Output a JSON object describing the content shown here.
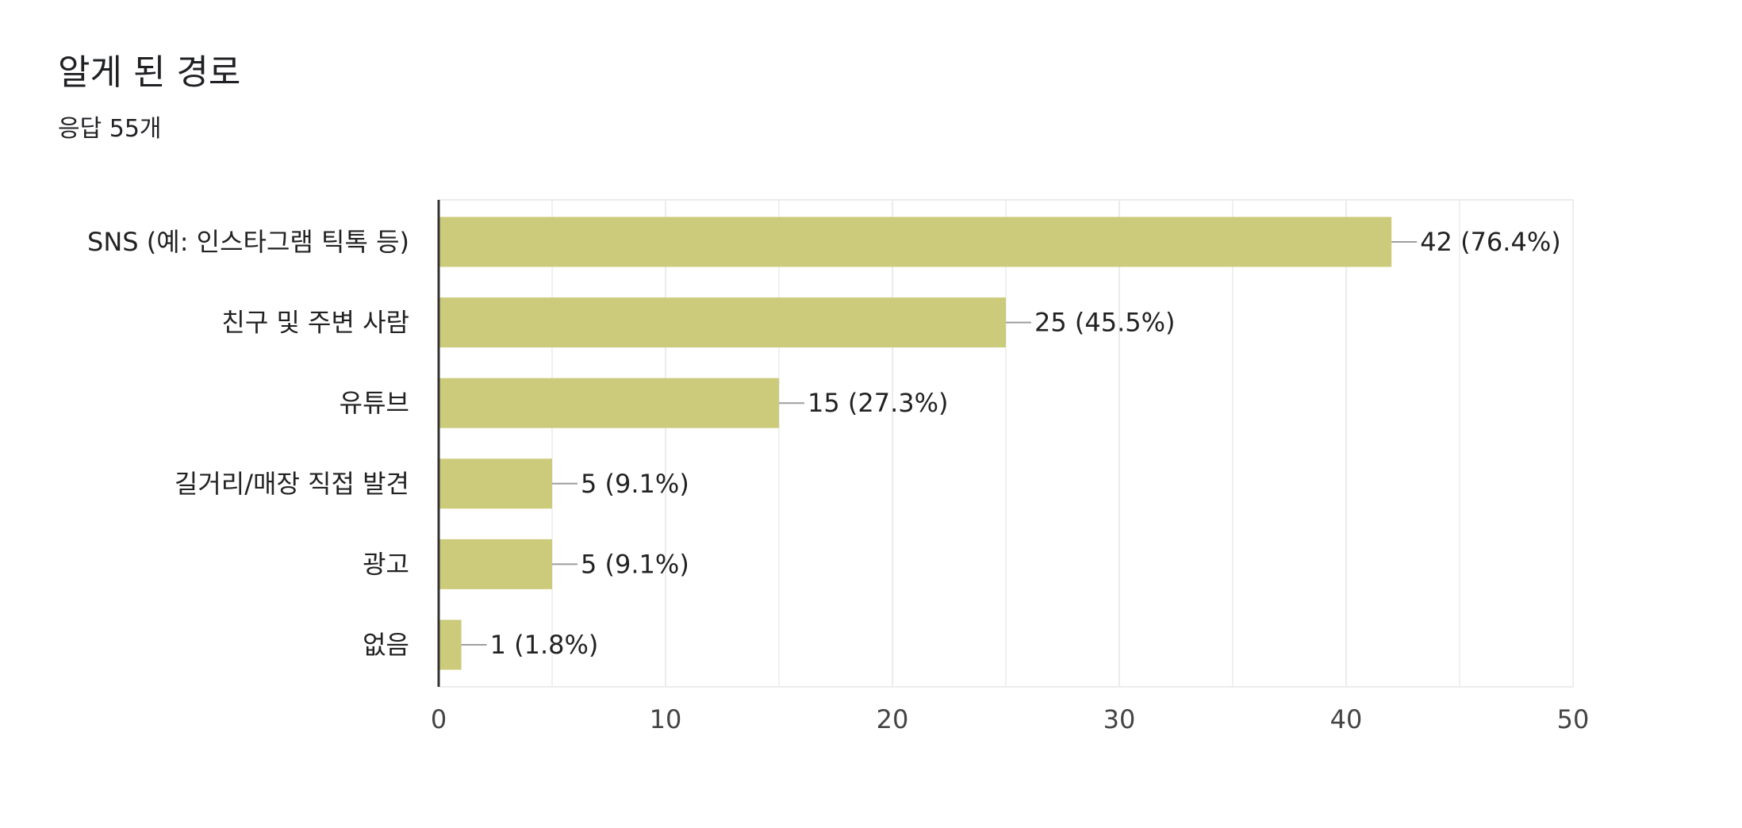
{
  "header": {
    "title": "알게 된 경로",
    "subtitle": "응답 55개"
  },
  "colors": {
    "bar": "#cccb7c",
    "grid": "#ececec",
    "axis": "#333333",
    "leader": "#9e9e9e",
    "text": "#222222",
    "tick_text": "#444444"
  },
  "chart_data": {
    "type": "bar",
    "orientation": "horizontal",
    "title": "알게 된 경로",
    "subtitle": "응답 55개",
    "categories": [
      "SNS (예: 인스타그램 틱톡 등)",
      "친구 및 주변 사람",
      "유튜브",
      "길거리/매장 직접 발견",
      "광고",
      "없음"
    ],
    "values": [
      42,
      25,
      15,
      5,
      5,
      1
    ],
    "data_labels": [
      "42 (76.4%)",
      "25 (45.5%)",
      "15 (27.3%)",
      "5 (9.1%)",
      "5 (9.1%)",
      "1 (1.8%)"
    ],
    "xlim": [
      0,
      50
    ],
    "x_ticks": [
      "0",
      "10",
      "20",
      "30",
      "40",
      "50"
    ],
    "x_tick_values": [
      0,
      10,
      20,
      30,
      40,
      50
    ],
    "minor_grid_step": 5,
    "grid": true,
    "legend": "none"
  }
}
